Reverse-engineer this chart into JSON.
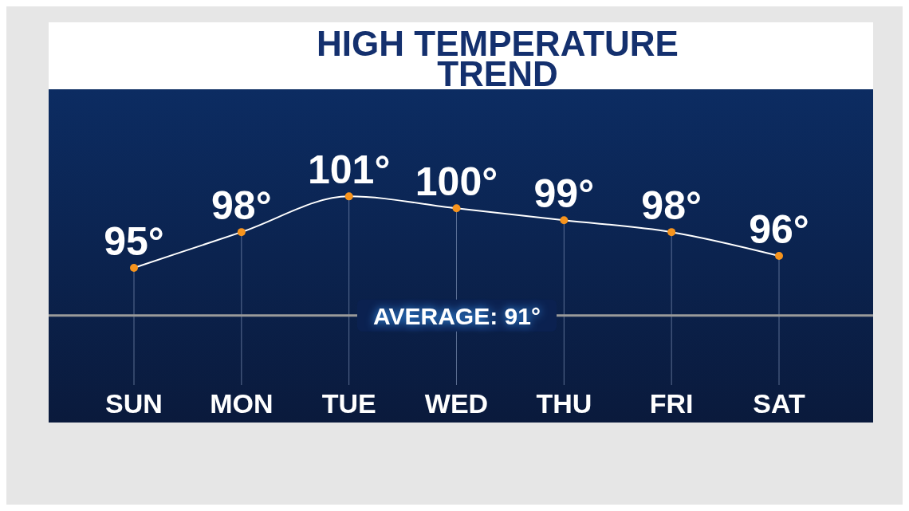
{
  "chart_data": {
    "type": "line",
    "title": "HIGH TEMPERATURE TREND",
    "categories": [
      "SUN",
      "MON",
      "TUE",
      "WED",
      "THU",
      "FRI",
      "SAT"
    ],
    "series": [
      {
        "color": "#ffffff",
        "values": [
          95,
          98,
          101,
          100,
          99,
          98,
          96
        ],
        "value_labels": [
          "95°",
          "98°",
          "101°",
          "100°",
          "99°",
          "98°",
          "96°"
        ]
      }
    ],
    "marker": "circle",
    "ylim": [
      82,
      110
    ],
    "tick_labels": "x",
    "ref_lines": [
      {
        "axis": "y",
        "value": 91,
        "label": "AVERAGE: 91°",
        "color": "#9a9a9a"
      }
    ]
  }
}
